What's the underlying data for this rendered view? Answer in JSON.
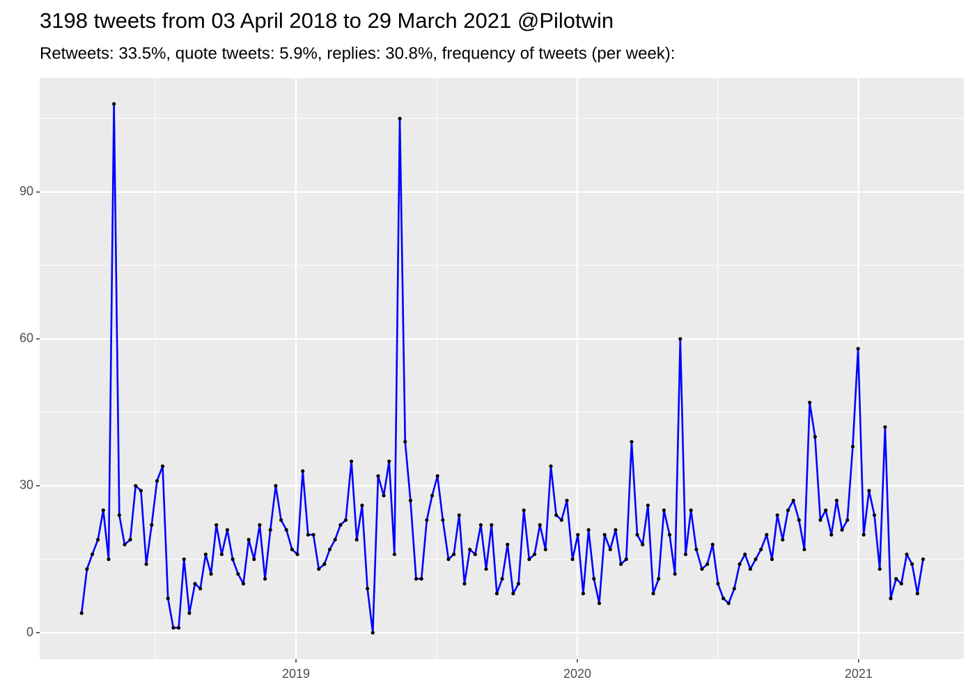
{
  "chart_data": {
    "type": "line",
    "title": "3198 tweets from 03 April 2018 to 29 March 2021 @Pilotwin",
    "subtitle": "Retweets: 33.5%, quote tweets: 5.9%, replies: 30.8%, frequency of tweets (per week):",
    "x": [
      2018.238,
      2018.257,
      2018.276,
      2018.296,
      2018.315,
      2018.334,
      2018.353,
      2018.372,
      2018.391,
      2018.411,
      2018.43,
      2018.449,
      2018.468,
      2018.487,
      2018.506,
      2018.526,
      2018.545,
      2018.564,
      2018.583,
      2018.602,
      2018.621,
      2018.641,
      2018.66,
      2018.679,
      2018.698,
      2018.717,
      2018.736,
      2018.756,
      2018.775,
      2018.794,
      2018.813,
      2018.832,
      2018.851,
      2018.871,
      2018.89,
      2018.909,
      2018.928,
      2018.947,
      2018.966,
      2018.986,
      2019.005,
      2019.024,
      2019.043,
      2019.062,
      2019.081,
      2019.101,
      2019.12,
      2019.139,
      2019.158,
      2019.177,
      2019.197,
      2019.216,
      2019.235,
      2019.254,
      2019.273,
      2019.292,
      2019.312,
      2019.331,
      2019.35,
      2019.369,
      2019.388,
      2019.407,
      2019.427,
      2019.446,
      2019.465,
      2019.484,
      2019.503,
      2019.522,
      2019.542,
      2019.561,
      2019.58,
      2019.599,
      2019.618,
      2019.637,
      2019.657,
      2019.676,
      2019.695,
      2019.714,
      2019.733,
      2019.752,
      2019.772,
      2019.791,
      2019.81,
      2019.829,
      2019.848,
      2019.867,
      2019.887,
      2019.906,
      2019.925,
      2019.944,
      2019.963,
      2019.983,
      2020.002,
      2020.021,
      2020.04,
      2020.059,
      2020.078,
      2020.097,
      2020.117,
      2020.136,
      2020.155,
      2020.174,
      2020.193,
      2020.213,
      2020.232,
      2020.251,
      2020.27,
      2020.289,
      2020.308,
      2020.328,
      2020.347,
      2020.366,
      2020.385,
      2020.404,
      2020.423,
      2020.443,
      2020.462,
      2020.481,
      2020.5,
      2020.519,
      2020.538,
      2020.558,
      2020.577,
      2020.596,
      2020.615,
      2020.634,
      2020.653,
      2020.673,
      2020.692,
      2020.711,
      2020.73,
      2020.749,
      2020.768,
      2020.788,
      2020.807,
      2020.826,
      2020.845,
      2020.864,
      2020.883,
      2020.903,
      2020.922,
      2020.941,
      2020.96,
      2020.979,
      2020.998,
      2021.018,
      2021.037,
      2021.056,
      2021.075,
      2021.094,
      2021.114,
      2021.133,
      2021.152,
      2021.171,
      2021.19,
      2021.209,
      2021.229
    ],
    "series": [
      {
        "color": "#0000ff",
        "point_color": "#000000",
        "values": [
          4,
          13,
          16,
          19,
          25,
          15,
          108,
          24,
          18,
          19,
          30,
          29,
          14,
          22,
          31,
          34,
          7,
          1,
          1,
          15,
          4,
          10,
          9,
          16,
          12,
          22,
          16,
          21,
          15,
          12,
          10,
          19,
          15,
          22,
          11,
          21,
          30,
          23,
          21,
          17,
          16,
          33,
          20,
          20,
          13,
          14,
          17,
          19,
          22,
          23,
          35,
          19,
          26,
          9,
          0,
          32,
          28,
          35,
          16,
          105,
          39,
          27,
          11,
          11,
          23,
          28,
          32,
          23,
          15,
          16,
          24,
          10,
          17,
          16,
          22,
          13,
          22,
          8,
          11,
          18,
          8,
          10,
          25,
          15,
          16,
          22,
          17,
          34,
          24,
          23,
          27,
          15,
          20,
          8,
          21,
          11,
          6,
          20,
          17,
          21,
          14,
          15,
          39,
          20,
          18,
          26,
          8,
          11,
          25,
          20,
          12,
          60,
          16,
          25,
          17,
          13,
          14,
          18,
          10,
          7,
          6,
          9,
          14,
          16,
          13,
          15,
          17,
          20,
          15,
          24,
          19,
          25,
          27,
          23,
          17,
          47,
          40,
          23,
          25,
          20,
          27,
          21,
          23,
          38,
          58,
          20,
          29,
          24,
          13,
          42,
          7,
          11,
          10,
          16,
          14,
          8,
          15
        ]
      }
    ],
    "xlim": [
      2018.089,
      2021.374
    ],
    "xticks": [
      2019,
      2020,
      2021
    ],
    "minor_xticks": [
      2018.5,
      2019.5,
      2020.5
    ],
    "ylim": [
      -5.4,
      113.3
    ],
    "yticks": [
      0,
      30,
      60,
      90
    ],
    "minor_yticks": [
      15,
      45,
      75,
      105
    ],
    "grid": true,
    "panel_color": "#ebebeb"
  }
}
